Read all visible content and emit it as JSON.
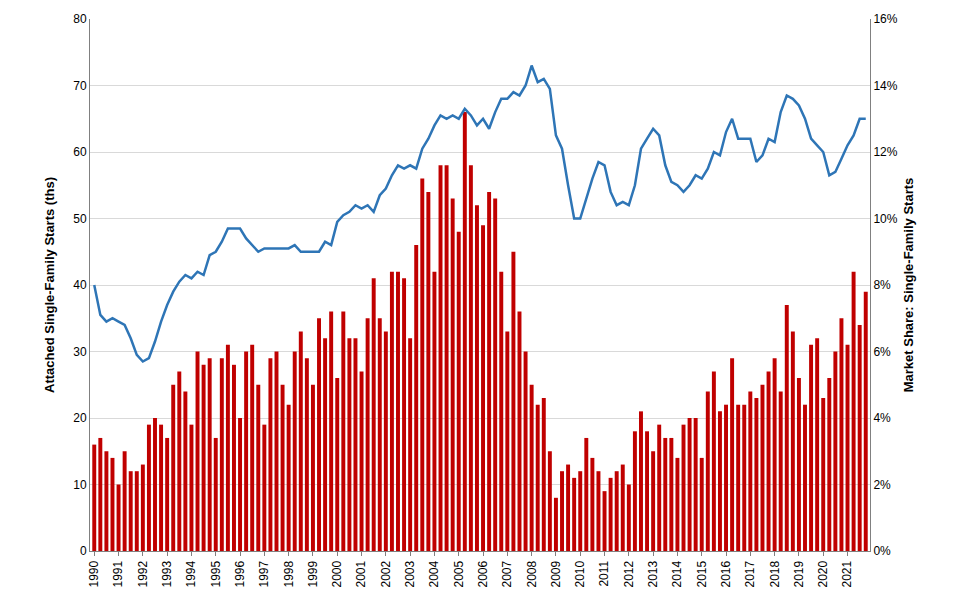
{
  "chart_data": {
    "type": "bar",
    "y_label": "Attached Single-Family Starts (ths)",
    "y2_label": "Market Share: Single-Family Starts",
    "categories": [
      "1990",
      null,
      null,
      null,
      "1991",
      null,
      null,
      null,
      "1992",
      null,
      null,
      null,
      "1993",
      null,
      null,
      null,
      "1994",
      null,
      null,
      null,
      "1995",
      null,
      null,
      null,
      "1996",
      null,
      null,
      null,
      "1997",
      null,
      null,
      null,
      "1998",
      null,
      null,
      null,
      "1999",
      null,
      null,
      null,
      "2000",
      null,
      null,
      null,
      "2001",
      null,
      null,
      null,
      "2002",
      null,
      null,
      null,
      "2003",
      null,
      null,
      null,
      "2004",
      null,
      null,
      null,
      "2005",
      null,
      null,
      null,
      "2006",
      null,
      null,
      null,
      "2007",
      null,
      null,
      null,
      "2008",
      null,
      null,
      null,
      "2009",
      null,
      null,
      null,
      "2010",
      null,
      null,
      null,
      "2011",
      null,
      null,
      null,
      "2012",
      null,
      null,
      null,
      "2013",
      null,
      null,
      null,
      "2014",
      null,
      null,
      null,
      "2015",
      null,
      null,
      null,
      "2016",
      null,
      null,
      null,
      "2017",
      null,
      null,
      null,
      "2018",
      null,
      null,
      null,
      "2019",
      null,
      null,
      null,
      "2020",
      null,
      null,
      null,
      "2021",
      null,
      null,
      null
    ],
    "series": [
      {
        "type": "bar",
        "color": "#c00000",
        "values": [
          16,
          17,
          15,
          14,
          10,
          15,
          12,
          12,
          13,
          19,
          20,
          19,
          17,
          25,
          27,
          24,
          19,
          30,
          28,
          29,
          17,
          29,
          31,
          28,
          20,
          30,
          31,
          25,
          19,
          29,
          30,
          25,
          22,
          30,
          33,
          29,
          25,
          35,
          32,
          36,
          26,
          36,
          32,
          32,
          27,
          35,
          41,
          35,
          33,
          42,
          42,
          41,
          32,
          46,
          56,
          54,
          42,
          58,
          58,
          53,
          48,
          66,
          58,
          52,
          49,
          54,
          53,
          42,
          33,
          45,
          36,
          30,
          25,
          22,
          23,
          15,
          8,
          12,
          13,
          11,
          12,
          17,
          14,
          12,
          9,
          11,
          12,
          13,
          10,
          18,
          21,
          18,
          15,
          19,
          17,
          17,
          14,
          19,
          20,
          20,
          14,
          24,
          27,
          21,
          22,
          29,
          22,
          22,
          24,
          23,
          25,
          27,
          29,
          24,
          37,
          33,
          26,
          22,
          31,
          32,
          23,
          26,
          30,
          35,
          31,
          42,
          34,
          39
        ]
      },
      {
        "type": "line",
        "color": "#2e75b6",
        "axis": "y2",
        "values": [
          8.0,
          7.1,
          6.9,
          7.0,
          6.9,
          6.8,
          6.4,
          5.9,
          5.7,
          5.8,
          6.3,
          6.9,
          7.4,
          7.8,
          8.1,
          8.3,
          8.2,
          8.4,
          8.3,
          8.9,
          9.0,
          9.3,
          9.7,
          9.7,
          9.7,
          9.4,
          9.2,
          9.0,
          9.1,
          9.1,
          9.1,
          9.1,
          9.1,
          9.2,
          9.0,
          9.0,
          9.0,
          9.0,
          9.3,
          9.2,
          9.9,
          10.1,
          10.2,
          10.4,
          10.3,
          10.4,
          10.2,
          10.7,
          10.9,
          11.3,
          11.6,
          11.5,
          11.6,
          11.5,
          12.1,
          12.4,
          12.8,
          13.1,
          13.0,
          13.1,
          13.0,
          13.3,
          13.1,
          12.8,
          13.0,
          12.7,
          13.2,
          13.6,
          13.6,
          13.8,
          13.7,
          14.0,
          14.6,
          14.1,
          14.2,
          13.9,
          12.5,
          12.1,
          11.0,
          10.0,
          10.0,
          10.6,
          11.2,
          11.7,
          11.6,
          10.8,
          10.4,
          10.5,
          10.4,
          11.0,
          12.1,
          12.4,
          12.7,
          12.5,
          11.6,
          11.1,
          11.0,
          10.8,
          11.0,
          11.3,
          11.2,
          11.5,
          12.0,
          11.9,
          12.6,
          13.0,
          12.4,
          12.4,
          12.4,
          11.7,
          11.9,
          12.4,
          12.3,
          13.2,
          13.7,
          13.6,
          13.4,
          13.0,
          12.4,
          12.2,
          12.0,
          11.3,
          11.4,
          11.8,
          12.2,
          12.5,
          13.0,
          13.0
        ]
      }
    ],
    "ylim": [
      0,
      80
    ],
    "yticks": [
      0,
      10,
      20,
      30,
      40,
      50,
      60,
      70,
      80
    ],
    "y2lim": [
      0,
      16
    ],
    "y2ticks": [
      {
        "value": 0,
        "label": "0%"
      },
      {
        "value": 2,
        "label": "2%"
      },
      {
        "value": 4,
        "label": "4%"
      },
      {
        "value": 6,
        "label": "6%"
      },
      {
        "value": 8,
        "label": "8%"
      },
      {
        "value": 10,
        "label": "10%"
      },
      {
        "value": 12,
        "label": "12%"
      },
      {
        "value": 14,
        "label": "14%"
      },
      {
        "value": 16,
        "label": "16%"
      }
    ],
    "grid": true
  }
}
